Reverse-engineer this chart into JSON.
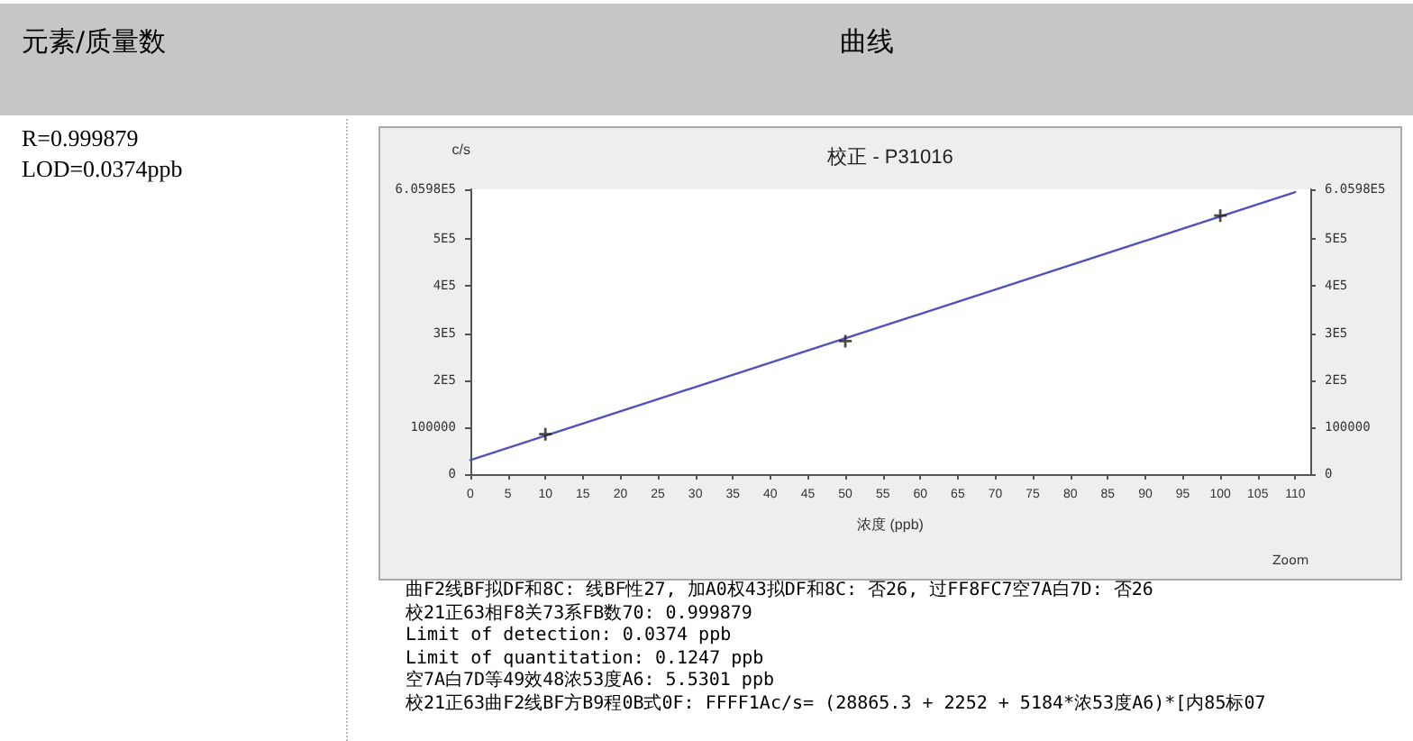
{
  "chart_data": {
    "type": "line",
    "title": "校正 - P31016",
    "xlabel": "浓度 (ppb)",
    "ylabel": "c/s",
    "annotations": [
      "元素/质量数",
      "曲线",
      "R=0.999879",
      "LOD=0.0374ppb",
      "Zoom",
      "曲F2线BF拟DF和8C: 线BF性27, 加A0权43拟DF和8C: 否26, 过FF8FC7空7A白7D: 否26",
      "校21正63相F8关73系FB数70: 0.999879",
      "Limit of detection: 0.0374 ppb",
      "Limit of quantitation: 0.1247 ppb",
      "空7A白7D等49效48浓53度A6: 5.5301 ppb",
      "校21正63曲F2线BF方B9程0B式0F: FFFF1Ac/s= (28865.3 + 2252 + 5184*浓53度A6)*[内85标07"
    ],
    "series": [
      {
        "type": "line",
        "color": "#5050c0",
        "x": [
          0,
          110
        ],
        "values": [
          30000,
          600000
        ],
        "marker": "none",
        "line_style": "solid"
      },
      {
        "type": "scatter",
        "color": "#202020",
        "x": [
          10,
          50,
          100
        ],
        "values": [
          85000,
          283000,
          550000
        ],
        "marker": "cross"
      }
    ],
    "xlim": [
      0,
      112
    ],
    "xticks": [
      0,
      5,
      10,
      15,
      20,
      25,
      30,
      35,
      40,
      45,
      50,
      55,
      60,
      65,
      70,
      75,
      80,
      85,
      90,
      95,
      100,
      105,
      110
    ],
    "ylim": [
      0,
      605980
    ],
    "yticks": [
      0,
      100000,
      {
        "value": 200000,
        "label": "2E5"
      },
      {
        "value": 300000,
        "label": "3E5"
      },
      {
        "value": 400000,
        "label": "4E5"
      },
      {
        "value": 500000,
        "label": "5E5"
      },
      {
        "value": 605980,
        "label": "6.0598E5"
      }
    ],
    "y2lim": [
      0,
      605980
    ],
    "y2ticks": [
      0,
      100000,
      {
        "value": 200000,
        "label": "2E5"
      },
      {
        "value": 300000,
        "label": "3E5"
      },
      {
        "value": 400000,
        "label": "4E5"
      },
      {
        "value": 500000,
        "label": "5E5"
      },
      {
        "value": 605980,
        "label": "6.0598E5"
      }
    ],
    "grid": false
  }
}
